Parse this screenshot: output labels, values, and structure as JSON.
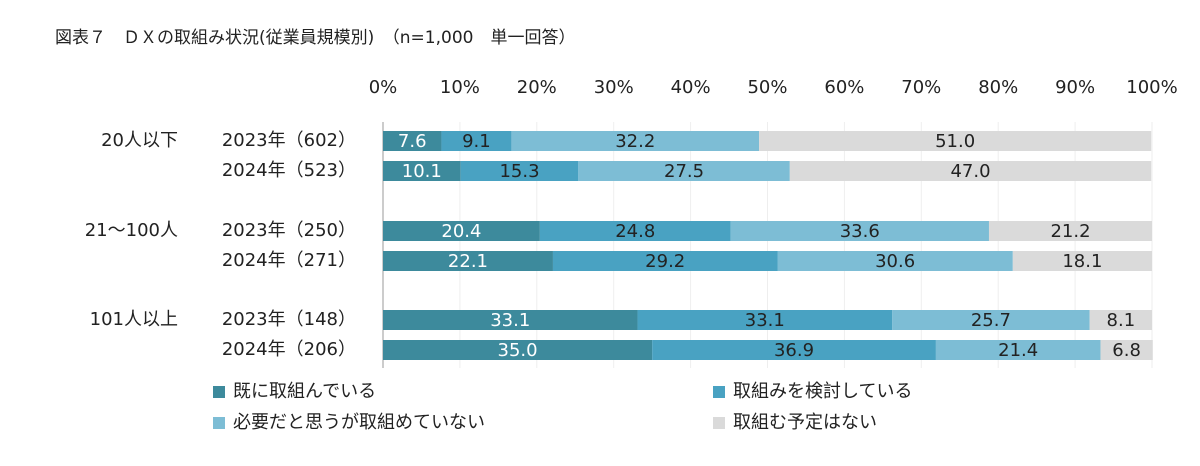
{
  "chart_data": {
    "type": "stacked-bar-horizontal",
    "title": "図表７　ＤＸの取組み状況(従業員規模別)　（n=1,000　単一回答）",
    "groups": [
      "20人以下",
      "21～100人",
      "101人以上"
    ],
    "categories": [
      "2023年（602）",
      "2024年（523）",
      "2023年（250）",
      "2024年（271）",
      "2023年（148）",
      "2024年（206）"
    ],
    "series": [
      {
        "name": "既に取組んでいる",
        "color": "#3d8a9c",
        "values": [
          7.6,
          10.1,
          20.4,
          22.1,
          33.1,
          35.0
        ],
        "value_labels": [
          "7.6",
          "10.1",
          "20.4",
          "22.1",
          "33.1",
          "35.0"
        ]
      },
      {
        "name": "取組みを検討している",
        "color": "#49a2c2",
        "values": [
          9.1,
          15.3,
          24.8,
          29.2,
          33.1,
          36.9
        ],
        "value_labels": [
          "9.1",
          "15.3",
          "24.8",
          "29.2",
          "33.1",
          "36.9"
        ]
      },
      {
        "name": "必要だと思うが取組めていない",
        "color": "#7dbdd5",
        "values": [
          32.2,
          27.5,
          33.6,
          30.6,
          25.7,
          21.4
        ],
        "value_labels": [
          "32.2",
          "27.5",
          "33.6",
          "30.6",
          "25.7",
          "21.4"
        ]
      },
      {
        "name": "取組む予定はない",
        "color": "#dadada",
        "values": [
          51.0,
          47.0,
          21.2,
          18.1,
          8.1,
          6.8
        ],
        "value_labels": [
          "51.0",
          "47.0",
          "21.2",
          "18.1",
          "8.1",
          "6.8"
        ]
      }
    ],
    "xlim": [
      0,
      100
    ],
    "xticks": [
      {
        "value": 0,
        "label": "0%"
      },
      {
        "value": 10,
        "label": "10%"
      },
      {
        "value": 20,
        "label": "20%"
      },
      {
        "value": 30,
        "label": "30%"
      },
      {
        "value": 40,
        "label": "40%"
      },
      {
        "value": 50,
        "label": "50%"
      },
      {
        "value": 60,
        "label": "60%"
      },
      {
        "value": 70,
        "label": "70%"
      },
      {
        "value": 80,
        "label": "80%"
      },
      {
        "value": 90,
        "label": "90%"
      },
      {
        "value": 100,
        "label": "100%"
      }
    ],
    "grid": true
  }
}
